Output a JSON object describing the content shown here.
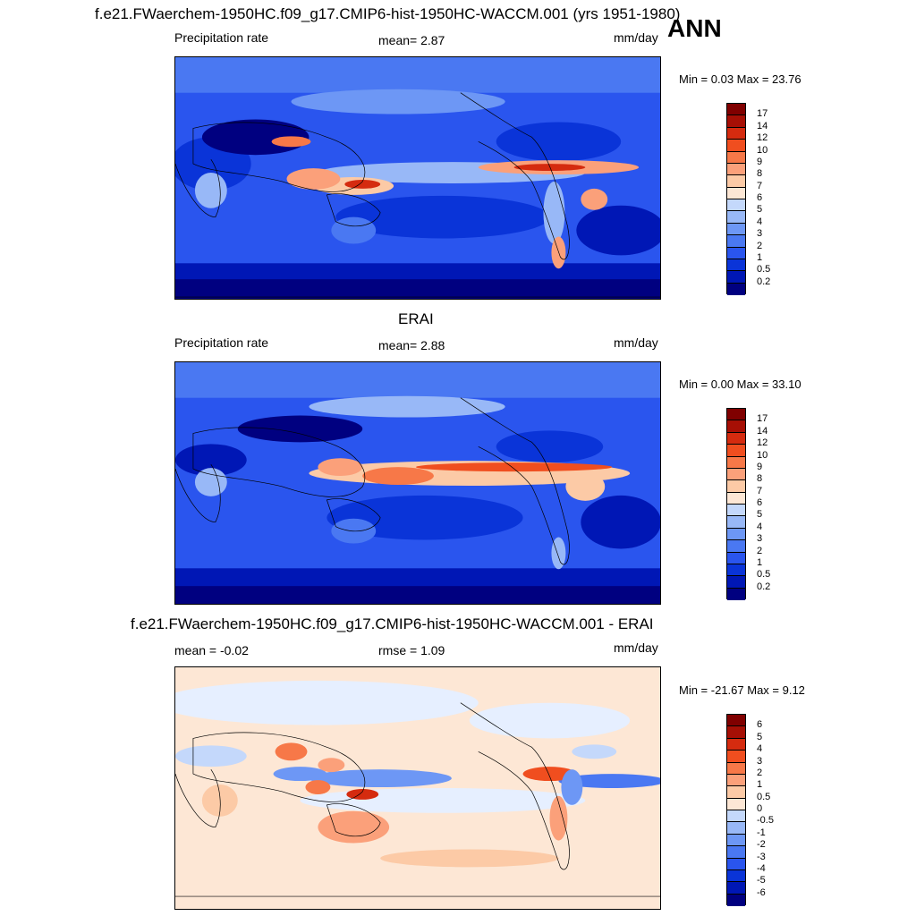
{
  "season": "ANN",
  "units": "mm/day",
  "panels": [
    {
      "title": "f.e21.FWaerchem-1950HC.f09_g17.CMIP6-hist-1950HC-WACCM.001 (yrs 1951-1980)",
      "left_label": "Precipitation rate",
      "mid_label": "mean=   2.87",
      "right_label": "mm/day",
      "minmax": "Min =   0.03 Max =  23.76",
      "levels": [
        "17",
        "14",
        "12",
        "10",
        "9",
        "8",
        "7",
        "6",
        "5",
        "4",
        "3",
        "2",
        "1",
        "0.5",
        "0.2"
      ]
    },
    {
      "title": "ERAI",
      "left_label": "Precipitation rate",
      "mid_label": "mean=   2.88",
      "right_label": "mm/day",
      "minmax": "Min =   0.00 Max =  33.10",
      "levels": [
        "17",
        "14",
        "12",
        "10",
        "9",
        "8",
        "7",
        "6",
        "5",
        "4",
        "3",
        "2",
        "1",
        "0.5",
        "0.2"
      ]
    },
    {
      "title": "f.e21.FWaerchem-1950HC.f09_g17.CMIP6-hist-1950HC-WACCM.001 - ERAI",
      "left_label": "mean =  -0.02",
      "mid_label": "rmse =   1.09",
      "right_label": "mm/day",
      "minmax": "Min = -21.67 Max =   9.12",
      "levels": [
        "6",
        "5",
        "4",
        "3",
        "2",
        "1",
        "0.5",
        "0",
        "-0.5",
        "-1",
        "-2",
        "-3",
        "-4",
        "-5",
        "-6"
      ]
    }
  ],
  "colors": {
    "precip_scale": [
      "#000080",
      "#0017b5",
      "#0a34d8",
      "#2a55ee",
      "#4a78f2",
      "#6d97f5",
      "#98b8f7",
      "#c4d8fb",
      "#e6efff",
      "#fde7d5",
      "#fccaa6",
      "#fba07a",
      "#f77848",
      "#f04e1f",
      "#d52b0f",
      "#a60f05",
      "#800000"
    ],
    "diff_scale": [
      "#000080",
      "#0017b5",
      "#0a34d8",
      "#2a55ee",
      "#4a78f2",
      "#6d97f5",
      "#98b8f7",
      "#c4d8fb",
      "#e6efff",
      "#fde7d5",
      "#fccaa6",
      "#fba07a",
      "#f77848",
      "#f04e1f",
      "#d52b0f",
      "#a60f05",
      "#800000"
    ]
  },
  "chart_data": [
    {
      "type": "heatmap",
      "title": "f.e21.FWaerchem-1950HC.f09_g17.CMIP6-hist-1950HC-WACCM.001 (yrs 1951-1980)",
      "variable": "Precipitation rate",
      "units": "mm/day",
      "mean": 2.87,
      "min": 0.03,
      "max": 23.76,
      "contour_levels": [
        0.2,
        0.5,
        1,
        2,
        3,
        4,
        5,
        6,
        7,
        8,
        9,
        10,
        12,
        14,
        17
      ],
      "season": "ANN"
    },
    {
      "type": "heatmap",
      "title": "ERAI",
      "variable": "Precipitation rate",
      "units": "mm/day",
      "mean": 2.88,
      "min": 0.0,
      "max": 33.1,
      "contour_levels": [
        0.2,
        0.5,
        1,
        2,
        3,
        4,
        5,
        6,
        7,
        8,
        9,
        10,
        12,
        14,
        17
      ]
    },
    {
      "type": "heatmap",
      "title": "f.e21.FWaerchem-1950HC.f09_g17.CMIP6-hist-1950HC-WACCM.001 - ERAI",
      "units": "mm/day",
      "mean": -0.02,
      "rmse": 1.09,
      "min": -21.67,
      "max": 9.12,
      "contour_levels": [
        -6,
        -5,
        -4,
        -3,
        -2,
        -1,
        -0.5,
        0,
        0.5,
        1,
        2,
        3,
        4,
        5,
        6
      ]
    }
  ]
}
